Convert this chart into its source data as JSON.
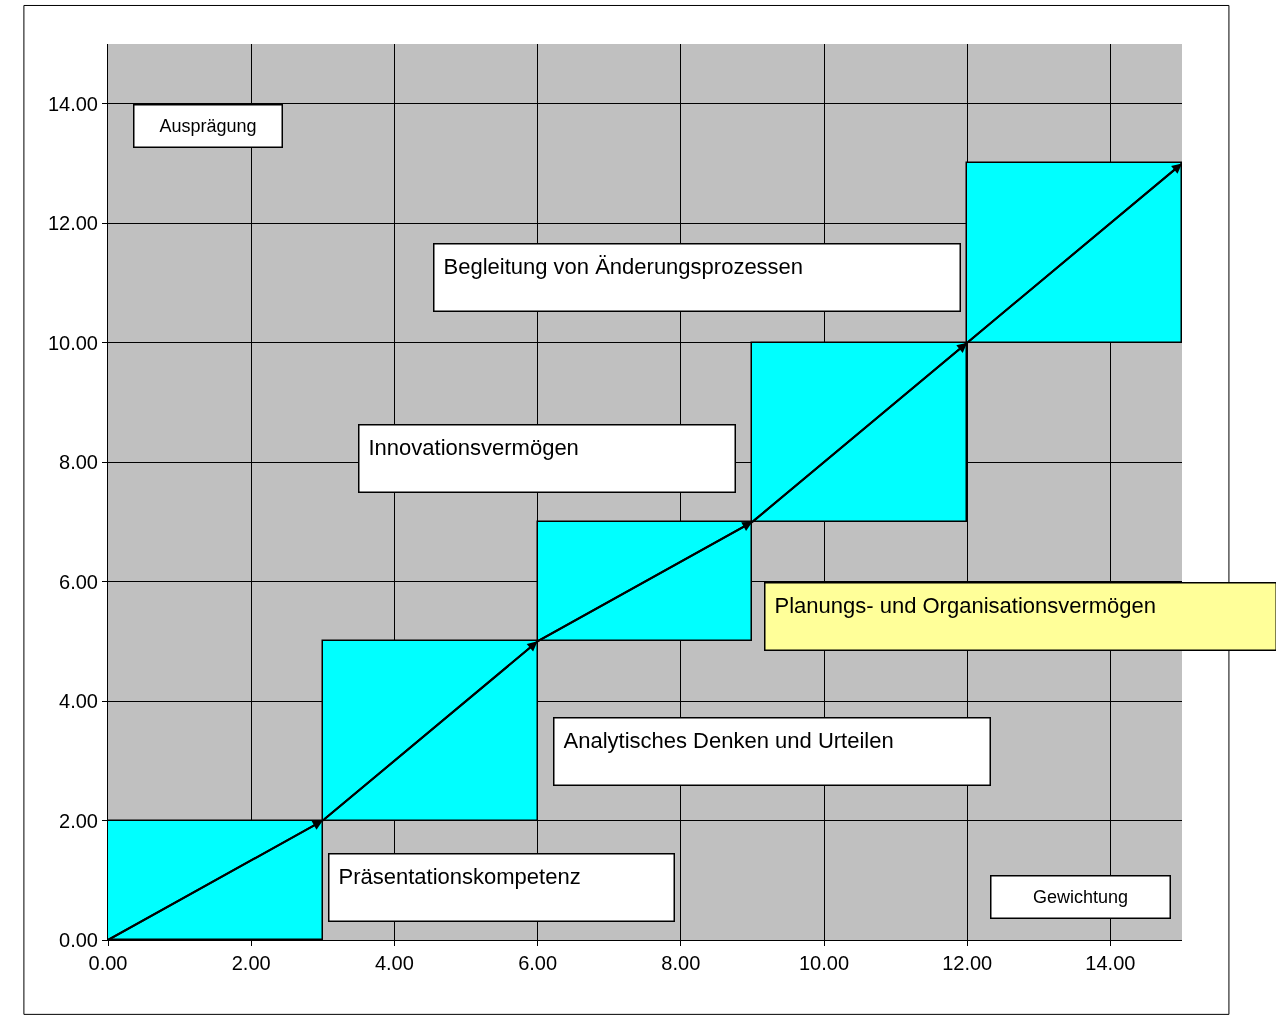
{
  "chart_data": {
    "type": "bar",
    "xlabel": "Gewichtung",
    "ylabel": "Ausprägung",
    "series": [
      {
        "color": "#00ffff",
        "x": [
          1.5,
          4.5,
          7.5,
          10.5,
          13.5
        ],
        "base": [
          0,
          2,
          5,
          7,
          10
        ],
        "values": [
          2,
          3,
          2,
          3,
          3
        ]
      },
      {
        "type": "line",
        "color": "#000000",
        "x": [
          0,
          3,
          6,
          9,
          12,
          15
        ],
        "values": [
          0,
          2,
          5,
          7,
          10,
          13
        ]
      }
    ],
    "annotations": [
      "Präsentationskompetenz",
      "Analytisches Denken und Urteilen",
      "Planungs- und Organisationsvermögen",
      "Innovationsvermögen",
      "Begleitung von Änderungsprozessen"
    ],
    "xlim": [
      0,
      15
    ],
    "ylim": [
      0,
      15
    ],
    "xticks": [
      {
        "value": 0,
        "label": "0.00"
      },
      {
        "value": 2,
        "label": "2.00"
      },
      {
        "value": 4,
        "label": "4.00"
      },
      {
        "value": 6,
        "label": "6.00"
      },
      {
        "value": 8,
        "label": "8.00"
      },
      {
        "value": 10,
        "label": "10.00"
      },
      {
        "value": 12,
        "label": "12.00"
      },
      {
        "value": 14,
        "label": "14.00"
      }
    ],
    "yticks": [
      {
        "value": 0,
        "label": "0.00"
      },
      {
        "value": 2,
        "label": "2.00"
      },
      {
        "value": 4,
        "label": "4.00"
      },
      {
        "value": 6,
        "label": "6.00"
      },
      {
        "value": 8,
        "label": "8.00"
      },
      {
        "value": 10,
        "label": "10.00"
      },
      {
        "value": 12,
        "label": "12.00"
      },
      {
        "value": 14,
        "label": "14.00"
      }
    ],
    "grid": true
  }
}
